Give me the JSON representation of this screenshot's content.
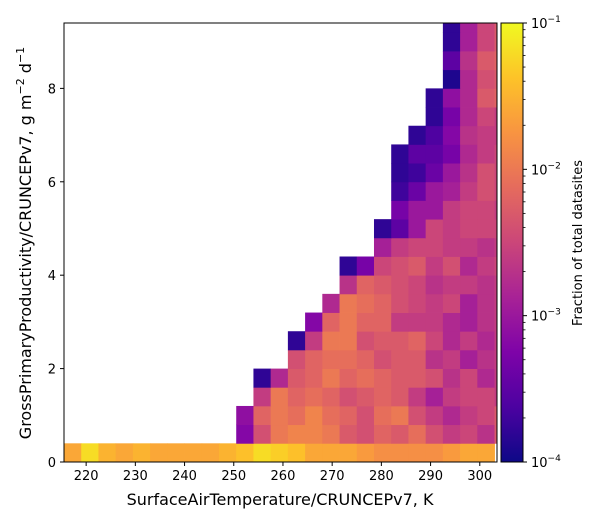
{
  "chart_data": {
    "type": "heatmap",
    "title": "",
    "xlabel": "SurfaceAirTemperature/CRUNCEPv7,  K",
    "ylabel_main": "GrossPrimaryProductivity/CRUNCEPv7,  g m",
    "ylabel_sup1": "−2",
    "ylabel_mid": " d",
    "ylabel_sup2": "−1",
    "xlim": [
      215.5,
      303.5
    ],
    "ylim": [
      0,
      9.4
    ],
    "xticks": [
      220,
      230,
      240,
      250,
      260,
      270,
      280,
      290,
      300
    ],
    "yticks": [
      0,
      2,
      4,
      6,
      8
    ],
    "bin_width_x": 3.5,
    "bin_height_y": 0.4,
    "colorbar": {
      "label": "Fraction of total datasites",
      "scale": "log",
      "colormap": "plasma",
      "min": 0.0001,
      "max": 0.1,
      "tick_labels": [
        {
          "value": 0.1,
          "base": "10",
          "exp": "−1"
        },
        {
          "value": 0.01,
          "base": "10",
          "exp": "−2"
        },
        {
          "value": 0.001,
          "base": "10",
          "exp": "−3"
        },
        {
          "value": 0.0001,
          "base": "10",
          "exp": "−4"
        }
      ]
    },
    "rows": [
      {
        "y0": 0.0,
        "x_start": 215.5,
        "log_values": [
          -1.6,
          -1.2,
          -1.5,
          -1.6,
          -1.5,
          -1.6,
          -1.6,
          -1.6,
          -1.6,
          -1.5,
          -1.4,
          -1.2,
          -1.3,
          -1.4,
          -1.6,
          -1.6,
          -1.6,
          -1.7,
          -1.8,
          -1.8,
          -1.8,
          -1.8,
          -1.7,
          -1.6,
          -1.6
        ]
      },
      {
        "y0": 0.4,
        "x_start": 250.5,
        "log_values": [
          -3.2,
          -2.4,
          -2.0,
          -1.9,
          -1.9,
          -2.0,
          -2.3,
          -2.4,
          -2.2,
          -2.3,
          -2.1,
          -2.4,
          -2.6,
          -2.5,
          -2.7,
          -2.3,
          -2.1
        ]
      },
      {
        "y0": 0.8,
        "x_start": 250.5,
        "log_values": [
          -3.1,
          -2.2,
          -2.0,
          -2.1,
          -1.9,
          -2.1,
          -2.2,
          -2.4,
          -2.1,
          -2.0,
          -2.4,
          -2.6,
          -2.8,
          -2.6,
          -2.5,
          -2.3,
          -2.4
        ]
      },
      {
        "y0": 1.2,
        "x_start": 254.0,
        "log_values": [
          -2.6,
          -2.0,
          -2.2,
          -2.1,
          -2.2,
          -2.4,
          -2.3,
          -2.2,
          -2.3,
          -2.6,
          -2.9,
          -2.6,
          -2.5,
          -2.5,
          -2.6,
          -2.5
        ]
      },
      {
        "y0": 1.6,
        "x_start": 254.0,
        "log_values": [
          -3.8,
          -2.8,
          -2.3,
          -2.2,
          -2.0,
          -2.2,
          -2.1,
          -2.2,
          -2.3,
          -2.3,
          -2.4,
          -2.7,
          -2.5,
          -2.8,
          -2.6,
          -2.5
        ]
      },
      {
        "y0": 2.0,
        "x_start": 261.0,
        "log_values": [
          -2.4,
          -2.2,
          -2.1,
          -2.1,
          -2.2,
          -2.4,
          -2.3,
          -2.3,
          -2.7,
          -2.6,
          -2.9,
          -2.7,
          -2.6,
          -2.5
        ]
      },
      {
        "y0": 2.4,
        "x_start": 261.0,
        "log_values": [
          -3.8,
          -2.6,
          -2.0,
          -2.0,
          -2.4,
          -2.3,
          -2.3,
          -2.2,
          -2.5,
          -2.8,
          -2.6,
          -2.8,
          -2.6,
          -2.5
        ]
      },
      {
        "y0": 2.8,
        "x_start": 264.5,
        "log_values": [
          -3.2,
          -2.2,
          -2.0,
          -2.2,
          -2.2,
          -2.6,
          -2.6,
          -2.6,
          -2.8,
          -2.9,
          -2.7,
          -2.6
        ]
      },
      {
        "y0": 3.2,
        "x_start": 268.0,
        "log_values": [
          -2.8,
          -2.0,
          -2.1,
          -2.2,
          -2.4,
          -2.5,
          -2.6,
          -2.5,
          -2.9,
          -2.7,
          -2.6
        ]
      },
      {
        "y0": 3.6,
        "x_start": 271.5,
        "log_values": [
          -2.7,
          -2.2,
          -2.3,
          -2.4,
          -2.5,
          -2.7,
          -2.6,
          -2.6,
          -2.7,
          -2.6
        ]
      },
      {
        "y0": 4.0,
        "x_start": 271.5,
        "log_values": [
          -3.8,
          -3.3,
          -2.5,
          -2.4,
          -2.3,
          -2.6,
          -2.4,
          -2.8,
          -2.6,
          -2.5
        ]
      },
      {
        "y0": 4.4,
        "x_start": 278.5,
        "log_values": [
          -2.9,
          -2.6,
          -2.5,
          -2.5,
          -2.6,
          -2.6,
          -2.7,
          -2.6
        ]
      },
      {
        "y0": 4.8,
        "x_start": 278.5,
        "log_values": [
          -3.8,
          -3.5,
          -3.0,
          -2.5,
          -2.6,
          -2.5,
          -2.5,
          -2.5
        ]
      },
      {
        "y0": 5.2,
        "x_start": 282.0,
        "log_values": [
          -3.3,
          -3.0,
          -3.0,
          -2.6,
          -2.5,
          -2.5,
          -2.6
        ]
      },
      {
        "y0": 5.6,
        "x_start": 282.0,
        "log_values": [
          -3.7,
          -3.4,
          -3.0,
          -2.9,
          -2.6,
          -2.4,
          -2.5
        ]
      },
      {
        "y0": 6.0,
        "x_start": 282.0,
        "log_values": [
          -3.8,
          -3.7,
          -3.4,
          -3.0,
          -2.7,
          -2.4,
          -2.5
        ]
      },
      {
        "y0": 6.4,
        "x_start": 282.0,
        "log_values": [
          -3.8,
          -3.5,
          -3.5,
          -3.3,
          -2.8,
          -2.6,
          -2.5
        ]
      },
      {
        "y0": 6.8,
        "x_start": 285.5,
        "log_values": [
          -3.8,
          -3.6,
          -3.2,
          -2.7,
          -2.6,
          -2.6
        ]
      },
      {
        "y0": 7.2,
        "x_start": 289.0,
        "log_values": [
          -3.8,
          -3.3,
          -2.8,
          -2.5,
          -2.6
        ]
      },
      {
        "y0": 7.6,
        "x_start": 289.0,
        "log_values": [
          -3.8,
          -3.1,
          -2.8,
          -2.3,
          -2.2
        ]
      },
      {
        "y0": 8.0,
        "x_start": 292.5,
        "log_values": [
          -3.9,
          -2.8,
          -2.4,
          -2.3
        ]
      },
      {
        "y0": 8.4,
        "x_start": 292.5,
        "log_values": [
          -3.5,
          -2.7,
          -2.3,
          -2.2
        ]
      },
      {
        "y0": 8.8,
        "x_start": 292.5,
        "log_values": [
          -3.8,
          -2.9,
          -2.5,
          -2.3
        ]
      },
      {
        "y0": 9.2,
        "x_start": 292.5,
        "log_values": [
          -3.8,
          -2.9,
          -2.5,
          -2.3
        ]
      }
    ]
  }
}
